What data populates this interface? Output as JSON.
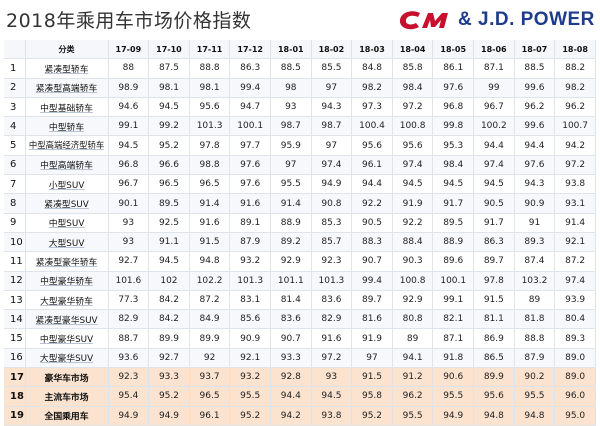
{
  "title": "2018年乘用车市场价格指数",
  "logo": {
    "brand_text": "& J.D. POWER",
    "mark_color": "#c8102e",
    "brand_color": "#1f3b8c"
  },
  "table": {
    "headers": [
      "",
      "分类",
      "17-09",
      "17-10",
      "17-11",
      "17-12",
      "18-01",
      "18-02",
      "18-03",
      "18-04",
      "18-05",
      "18-06",
      "18-07",
      "18-08"
    ],
    "rows": [
      {
        "idx": "1",
        "name": "紧凑型轿车",
        "values": [
          "88",
          "87.5",
          "88.8",
          "86.3",
          "88.5",
          "85.5",
          "84.8",
          "85.8",
          "86.1",
          "87.1",
          "88.5",
          "88.2"
        ]
      },
      {
        "idx": "2",
        "name": "紧凑型高端轿车",
        "values": [
          "98.9",
          "98.1",
          "98.1",
          "99.4",
          "98",
          "97",
          "98.2",
          "98.4",
          "97.6",
          "99",
          "99.6",
          "98.2"
        ]
      },
      {
        "idx": "3",
        "name": "中型基础轿车",
        "values": [
          "94.6",
          "94.5",
          "95.6",
          "94.7",
          "93",
          "94.3",
          "97.3",
          "97.2",
          "96.8",
          "96.7",
          "96.2",
          "96.2"
        ]
      },
      {
        "idx": "4",
        "name": "中型轿车",
        "values": [
          "99.1",
          "99.2",
          "101.3",
          "100.1",
          "98.7",
          "98.7",
          "100.4",
          "100.8",
          "99.8",
          "100.2",
          "99.6",
          "100.7"
        ]
      },
      {
        "idx": "5",
        "name": "中型高端经济型轿车",
        "values": [
          "94.5",
          "95.2",
          "97.8",
          "97.7",
          "95.9",
          "97",
          "95.6",
          "95.6",
          "95.3",
          "94.4",
          "94.4",
          "94.2"
        ]
      },
      {
        "idx": "6",
        "name": "中型高端轿车",
        "values": [
          "96.8",
          "96.6",
          "98.8",
          "97.6",
          "97",
          "97.4",
          "96.1",
          "97.4",
          "98.4",
          "97.4",
          "97.6",
          "97.2"
        ]
      },
      {
        "idx": "7",
        "name": "小型SUV",
        "values": [
          "96.7",
          "96.5",
          "96.5",
          "97.6",
          "95.5",
          "94.9",
          "94.4",
          "94.5",
          "94.5",
          "94.5",
          "94.3",
          "93.8"
        ]
      },
      {
        "idx": "8",
        "name": "紧凑型SUV",
        "values": [
          "90.1",
          "89.5",
          "91.4",
          "91.6",
          "91.4",
          "90.8",
          "92.2",
          "91.9",
          "91.7",
          "90.5",
          "90.9",
          "93.1"
        ]
      },
      {
        "idx": "9",
        "name": "中型SUV",
        "values": [
          "93",
          "92.5",
          "91.6",
          "89.1",
          "88.9",
          "85.3",
          "90.5",
          "92.2",
          "89.5",
          "91.7",
          "91",
          "91.4"
        ]
      },
      {
        "idx": "10",
        "name": "大型SUV",
        "values": [
          "93",
          "91.1",
          "91.5",
          "87.9",
          "89.2",
          "85.7",
          "88.3",
          "88.4",
          "88.9",
          "86.3",
          "89.3",
          "92.1"
        ]
      },
      {
        "idx": "11",
        "name": "紧凑型豪华轿车",
        "values": [
          "92.7",
          "94.5",
          "94.8",
          "93.2",
          "92.9",
          "92.3",
          "90.7",
          "90.3",
          "89.6",
          "89.7",
          "87.4",
          "87.2"
        ]
      },
      {
        "idx": "12",
        "name": "中型豪华轿车",
        "values": [
          "101.6",
          "102",
          "102.2",
          "101.3",
          "101.1",
          "101.3",
          "99.4",
          "100.8",
          "100.1",
          "97.8",
          "103.2",
          "97.4"
        ]
      },
      {
        "idx": "13",
        "name": "大型豪华轿车",
        "values": [
          "77.3",
          "84.2",
          "87.2",
          "83.1",
          "81.4",
          "83.6",
          "89.7",
          "92.9",
          "99.1",
          "91.5",
          "89",
          "93.9"
        ]
      },
      {
        "idx": "14",
        "name": "紧凑型豪华SUV",
        "values": [
          "82.9",
          "84.2",
          "84.9",
          "85.6",
          "83.6",
          "82.9",
          "81.6",
          "80.8",
          "82.1",
          "81.1",
          "81.8",
          "80.4"
        ]
      },
      {
        "idx": "15",
        "name": "中型豪华SUV",
        "values": [
          "88.7",
          "89.9",
          "89.9",
          "90.9",
          "90.7",
          "91.6",
          "91.9",
          "89",
          "87.1",
          "86.9",
          "88.8",
          "89.3"
        ]
      },
      {
        "idx": "16",
        "name": "大型豪华SUV",
        "values": [
          "93.6",
          "92.7",
          "92",
          "92.1",
          "93.3",
          "97.2",
          "97",
          "94.1",
          "91.8",
          "86.5",
          "87.9",
          "89.0"
        ]
      },
      {
        "idx": "17",
        "name": "豪华车市场",
        "values": [
          "92.3",
          "93.3",
          "93.7",
          "93.2",
          "92.8",
          "93",
          "91.5",
          "91.2",
          "90.6",
          "89.9",
          "90.2",
          "89.0"
        ]
      },
      {
        "idx": "18",
        "name": "主流车市场",
        "values": [
          "95.4",
          "95.2",
          "96.5",
          "95.5",
          "94.4",
          "94.5",
          "95.8",
          "96.2",
          "95.5",
          "95.6",
          "95.5",
          "96.0"
        ]
      },
      {
        "idx": "19",
        "name": "全国乘用车",
        "values": [
          "94.9",
          "94.9",
          "96.1",
          "95.2",
          "94.2",
          "93.8",
          "95.2",
          "95.5",
          "94.9",
          "94.8",
          "94.8",
          "95.0"
        ]
      }
    ]
  }
}
